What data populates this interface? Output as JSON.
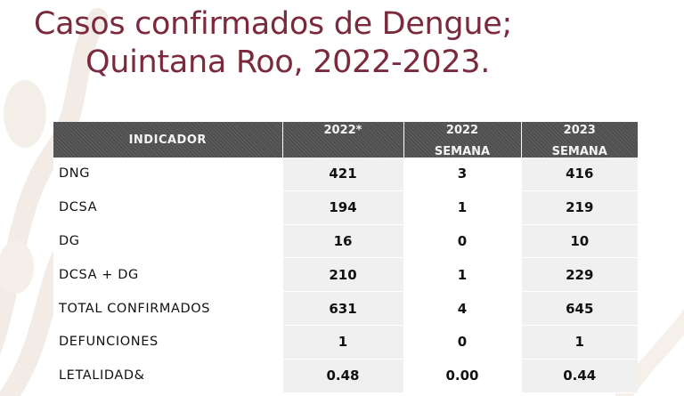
{
  "title": {
    "line1": "Casos confirmados de Dengue;",
    "line2": "Quintana Roo, 2022-2023."
  },
  "table": {
    "headers": [
      {
        "line1": "INDICADOR",
        "line2": ""
      },
      {
        "line1": "2022*",
        "line2": ""
      },
      {
        "line1": "2022",
        "line2": "SEMANA"
      },
      {
        "line1": "2023",
        "line2": "SEMANA"
      }
    ],
    "rows": [
      {
        "indicador": "DNG",
        "v2022_total": "421",
        "v2022_semana": "3",
        "v2023_semana": "416"
      },
      {
        "indicador": "DCSA",
        "v2022_total": "194",
        "v2022_semana": "1",
        "v2023_semana": "219"
      },
      {
        "indicador": "DG",
        "v2022_total": "16",
        "v2022_semana": "0",
        "v2023_semana": "10"
      },
      {
        "indicador": "DCSA + DG",
        "v2022_total": "210",
        "v2022_semana": "1",
        "v2023_semana": "229"
      },
      {
        "indicador": "TOTAL CONFIRMADOS",
        "v2022_total": "631",
        "v2022_semana": "4",
        "v2023_semana": "645"
      },
      {
        "indicador": "DEFUNCIONES",
        "v2022_total": "1",
        "v2022_semana": "0",
        "v2023_semana": "1"
      },
      {
        "indicador": "LETALIDAD&",
        "v2022_total": "0.48",
        "v2022_semana": "0.00",
        "v2023_semana": "0.44"
      }
    ]
  },
  "colors": {
    "title": "#7b2a3d",
    "header_bg": "#4f4f4f",
    "shaded_column": "#f0f0f0",
    "background_watermark": "#f3ece6"
  }
}
